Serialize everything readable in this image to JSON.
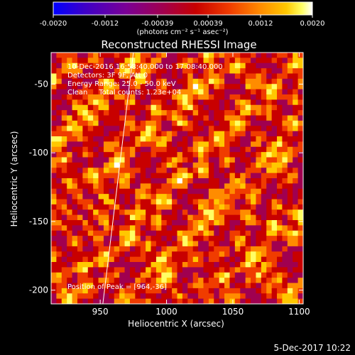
{
  "chart_data": {
    "type": "heatmap",
    "title": "Reconstructed RHESSI Image",
    "xlabel": "Heliocentric X (arcsec)",
    "ylabel": "Heliocentric Y (arcsec)",
    "xlim": [
      913,
      1103
    ],
    "ylim": [
      -210,
      -27
    ],
    "x_ticks": [
      950,
      1000,
      1050,
      1100
    ],
    "y_ticks": [
      -50,
      -100,
      -150,
      -200
    ],
    "colorbar": {
      "min": -0.002,
      "max": 0.002,
      "tick_labels": [
        "-0.0020",
        "-0.0012",
        "-0.00039",
        "0.00039",
        "0.0012",
        "0.0020"
      ],
      "tick_values": [
        -0.002,
        -0.0012,
        -0.00039,
        0.00039,
        0.0012,
        0.002
      ],
      "unit_label": "(photons cm⁻² s⁻¹ asec⁻²)",
      "colors": [
        "#0000ff",
        "#3d00c8",
        "#7a0096",
        "#a00050",
        "#c80000",
        "#f03c00",
        "#ff8c00",
        "#ffc800",
        "#ffff64",
        "#ffffff"
      ]
    },
    "annotations": {
      "time_range": "10-Dec-2016 16:58:40.000 to 17:08:40.000",
      "detectors": "Detectors: 3F 9F, Att 0",
      "energy_range": "Energy Range: 25.0 - 50.0 keV",
      "method": "Clean     Total counts: 1.23e+04",
      "peak": "Position of Peak = [964,-36]"
    },
    "limb_line": {
      "x": [
        952,
        975
      ],
      "y": [
        -210,
        -27
      ],
      "color": "#ffffff"
    },
    "grid": false
  },
  "footer": {
    "date": "5-Dec-2017 10:22"
  }
}
